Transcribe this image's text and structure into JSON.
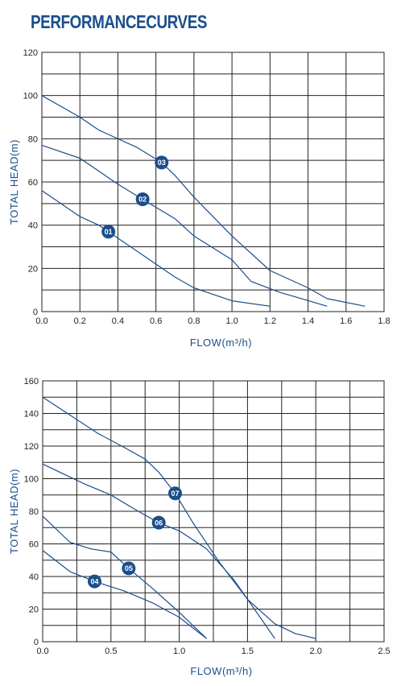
{
  "page_title": "PERFORMANCECURVES",
  "colors": {
    "accent": "#1b4e8c",
    "grid": "#222222"
  },
  "chart_data": [
    {
      "type": "line",
      "xlabel": "FLOW(m³/h)",
      "ylabel": "TOTAL HEAD(m)",
      "xlim": [
        0,
        1.8
      ],
      "ylim": [
        0,
        120
      ],
      "xticks": [
        0.0,
        0.2,
        0.4,
        0.6,
        0.8,
        1.0,
        1.2,
        1.4,
        1.6,
        1.8
      ],
      "xtick_labels": [
        "0.0",
        "0.2",
        "0.4",
        "0.6",
        "0.8",
        "1.0",
        "1.2",
        "1.4",
        "1.6",
        "1.8"
      ],
      "yticks": [
        0,
        20,
        40,
        60,
        80,
        100,
        120
      ],
      "ytick_labels": [
        "0",
        "20",
        "40",
        "60",
        "80",
        "100",
        "120"
      ],
      "grid": true,
      "series": [
        {
          "name": "01",
          "marker_at": [
            0.35,
            37
          ],
          "x": [
            0.0,
            0.1,
            0.2,
            0.3,
            0.35,
            0.5,
            0.7,
            0.8,
            1.0,
            1.2
          ],
          "y": [
            56,
            50,
            44,
            40,
            37,
            28,
            16,
            11,
            5,
            2.5
          ]
        },
        {
          "name": "02",
          "marker_at": [
            0.53,
            52
          ],
          "x": [
            0.0,
            0.2,
            0.4,
            0.53,
            0.7,
            0.8,
            1.0,
            1.1,
            1.25,
            1.5
          ],
          "y": [
            77,
            71,
            59,
            52,
            43,
            35,
            24,
            14,
            9,
            2.5
          ]
        },
        {
          "name": "03",
          "marker_at": [
            0.63,
            69
          ],
          "x": [
            0.0,
            0.2,
            0.3,
            0.5,
            0.63,
            0.7,
            0.8,
            1.0,
            1.2,
            1.4,
            1.5,
            1.7
          ],
          "y": [
            100,
            90,
            84,
            76,
            69,
            63,
            53,
            35,
            19,
            11,
            6,
            2.5
          ]
        }
      ]
    },
    {
      "type": "line",
      "xlabel": "FLOW(m³/h)",
      "ylabel": "TOTAL HEAD(m)",
      "xlim": [
        0,
        2.5
      ],
      "ylim": [
        0,
        160
      ],
      "xticks": [
        0.0,
        0.5,
        1.0,
        1.5,
        2.0,
        2.5
      ],
      "xtick_labels": [
        "0.0",
        "0.5",
        "1.0",
        "1.5",
        "2.0",
        "2.5"
      ],
      "yticks": [
        0,
        20,
        40,
        60,
        80,
        100,
        120,
        140,
        160
      ],
      "ytick_labels": [
        "0",
        "20",
        "40",
        "60",
        "80",
        "100",
        "120",
        "140",
        "160"
      ],
      "grid": true,
      "series": [
        {
          "name": "04",
          "marker_at": [
            0.38,
            37
          ],
          "x": [
            0.0,
            0.2,
            0.38,
            0.6,
            0.8,
            1.0,
            1.2
          ],
          "y": [
            56,
            43,
            37,
            31,
            24,
            15,
            2
          ]
        },
        {
          "name": "05",
          "marker_at": [
            0.63,
            45
          ],
          "x": [
            0.0,
            0.2,
            0.35,
            0.5,
            0.63,
            0.8,
            1.0,
            1.2
          ],
          "y": [
            77,
            61,
            57,
            55,
            45,
            33,
            18,
            2
          ]
        },
        {
          "name": "06",
          "marker_at": [
            0.85,
            73
          ],
          "x": [
            0.0,
            0.3,
            0.5,
            0.7,
            0.85,
            1.0,
            1.2,
            1.4,
            1.6,
            1.7
          ],
          "y": [
            109,
            97,
            90,
            80,
            73,
            68,
            57,
            38,
            14,
            2
          ]
        },
        {
          "name": "07",
          "marker_at": [
            0.97,
            91
          ],
          "x": [
            0.0,
            0.2,
            0.4,
            0.6,
            0.75,
            0.85,
            0.97,
            1.1,
            1.3,
            1.5,
            1.7,
            1.85,
            2.0
          ],
          "y": [
            150,
            139,
            128,
            119,
            112,
            104,
            91,
            73,
            48,
            26,
            11,
            5,
            2
          ]
        }
      ]
    }
  ]
}
